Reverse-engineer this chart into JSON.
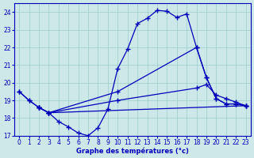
{
  "xlabel": "Graphe des températures (°c)",
  "bg_color": "#cce8e8",
  "grid_color": "#99cccc",
  "line_color": "#0000bb",
  "xlim": [
    -0.5,
    23.5
  ],
  "ylim": [
    17,
    24.5
  ],
  "yticks": [
    17,
    18,
    19,
    20,
    21,
    22,
    23,
    24
  ],
  "xticks": [
    0,
    1,
    2,
    3,
    4,
    5,
    6,
    7,
    8,
    9,
    10,
    11,
    12,
    13,
    14,
    15,
    16,
    17,
    18,
    19,
    20,
    21,
    22,
    23
  ],
  "curve1_x": [
    0,
    1,
    2,
    3,
    4,
    5,
    6,
    7,
    8,
    9,
    10,
    11,
    12,
    13,
    14,
    15,
    16,
    17,
    18,
    19,
    20,
    21,
    22,
    23
  ],
  "curve1_y": [
    19.5,
    19.0,
    18.6,
    18.3,
    17.8,
    17.5,
    17.15,
    17.0,
    17.45,
    18.5,
    20.8,
    21.9,
    23.35,
    23.65,
    24.1,
    24.05,
    23.7,
    23.9,
    22.0,
    20.3,
    19.1,
    18.8,
    18.8,
    18.7
  ],
  "curve2_x": [
    0,
    1,
    2,
    3,
    10,
    18,
    19,
    20,
    21,
    22,
    23
  ],
  "curve2_y": [
    19.5,
    19.0,
    18.6,
    18.3,
    19.5,
    22.0,
    20.3,
    19.1,
    18.8,
    18.8,
    18.7
  ],
  "curve3_x": [
    2,
    3,
    10,
    18,
    19,
    20,
    21,
    22,
    23
  ],
  "curve3_y": [
    18.6,
    18.3,
    19.0,
    19.7,
    19.9,
    19.3,
    19.1,
    18.9,
    18.7
  ],
  "curve4_x": [
    2,
    3,
    23
  ],
  "curve4_y": [
    18.6,
    18.3,
    18.7
  ]
}
